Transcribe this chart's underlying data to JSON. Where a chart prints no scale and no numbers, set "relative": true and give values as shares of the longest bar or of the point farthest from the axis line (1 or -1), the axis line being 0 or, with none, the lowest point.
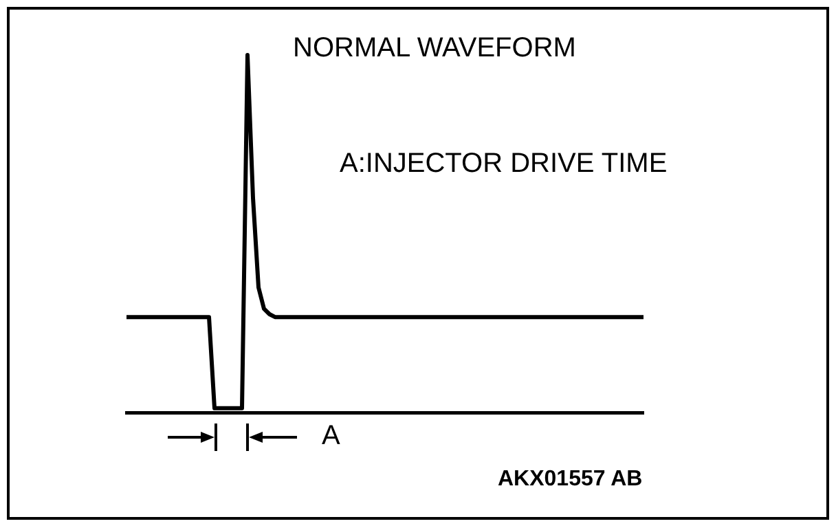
{
  "chart_data": {
    "type": "line",
    "title": "NORMAL  WAVEFORM",
    "relative": true,
    "legend": false,
    "grid": false,
    "marker": "none",
    "line_style": "solid",
    "annotations": [
      "A:INJECTOR DRIVE TIME",
      "A",
      "AKX01557 AB"
    ],
    "categories": [
      null,
      null,
      null,
      null,
      null,
      null,
      null,
      null,
      null,
      null,
      null,
      null,
      null,
      null,
      null,
      null,
      null,
      null,
      null,
      null,
      null,
      null,
      null,
      null,
      null,
      null,
      null,
      null,
      null,
      null,
      null,
      null,
      null,
      null,
      null,
      null,
      null,
      null,
      null,
      null,
      null,
      null,
      null,
      null,
      null,
      null,
      null,
      null,
      null,
      null,
      null,
      null,
      null,
      null,
      null,
      null,
      null,
      null,
      null,
      null,
      null,
      null,
      null,
      null,
      null,
      null,
      null,
      null,
      null,
      null,
      null,
      null,
      null,
      null,
      null,
      null,
      null,
      null,
      null,
      null,
      null,
      null,
      null,
      null,
      null,
      null,
      null,
      null,
      null,
      null,
      null,
      null,
      null,
      null,
      null
    ],
    "series": [
      {
        "color": "#000000",
        "values": [
          0.267,
          0.267,
          0.267,
          0.267,
          0.267,
          0.267,
          0.267,
          0.267,
          0.267,
          0.267,
          0.267,
          0.267,
          0.267,
          0.267,
          0.267,
          0.267,
          0.012,
          0.012,
          0.012,
          0.012,
          0.012,
          0.012,
          1,
          0.6,
          0.35,
          0.29,
          0.275,
          0.267,
          0.267,
          0.267,
          0.267,
          0.267,
          0.267,
          0.267,
          0.267,
          0.267,
          0.267,
          0.267,
          0.267,
          0.267,
          0.267,
          0.267,
          0.267,
          0.267,
          0.267,
          0.267,
          0.267,
          0.267,
          0.267,
          0.267,
          0.267,
          0.267,
          0.267,
          0.267,
          0.267,
          0.267,
          0.267,
          0.267,
          0.267,
          0.267,
          0.267,
          0.267,
          0.267,
          0.267,
          0.267,
          0.267,
          0.267,
          0.267,
          0.267,
          0.267,
          0.267,
          0.267,
          0.267,
          0.267,
          0.267,
          0.267,
          0.267,
          0.267,
          0.267,
          0.267,
          0.267,
          0.267,
          0.267,
          0.267,
          0.267,
          0.267,
          0.267,
          0.267,
          0.267,
          0.267,
          0.267,
          0.267,
          0.267,
          0.267,
          0.267
        ]
      }
    ]
  }
}
